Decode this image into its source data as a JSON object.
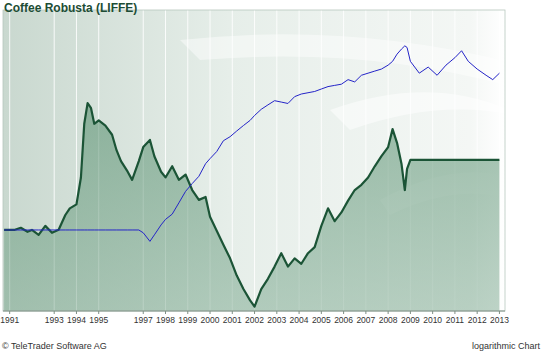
{
  "chart_data": {
    "type": "line",
    "title": "Coffee Robusta (LIFFE)",
    "annotations": [
      "© TeleTrader Software AG",
      "logarithmic Chart"
    ],
    "log": "y",
    "grid": true,
    "tick_labels": "x",
    "xlim": [
      1990.7,
      2013.25
    ],
    "xticks": [
      1991,
      1993,
      1994,
      1995,
      1997,
      1998,
      1999,
      2000,
      2001,
      2002,
      2003,
      2004,
      2005,
      2006,
      2007,
      2008,
      2009,
      2010,
      2011,
      2012,
      2013
    ],
    "ylim": [
      450,
      9000
    ],
    "x": [
      1990.75,
      1991.2,
      1991.5,
      1991.8,
      1992.0,
      1992.3,
      1992.6,
      1992.9,
      1993.2,
      1993.5,
      1993.7,
      1994.0,
      1994.2,
      1994.35,
      1994.5,
      1994.65,
      1994.8,
      1995.0,
      1995.3,
      1995.6,
      1995.8,
      1996.0,
      1996.3,
      1996.5,
      1996.8,
      1997.0,
      1997.3,
      1997.5,
      1997.8,
      1998.0,
      1998.3,
      1998.6,
      1998.9,
      1999.2,
      1999.5,
      1999.8,
      2000.0,
      2000.3,
      2000.6,
      2000.9,
      2001.2,
      2001.5,
      2001.8,
      2002.0,
      2002.3,
      2002.6,
      2002.9,
      2003.2,
      2003.5,
      2003.8,
      2004.1,
      2004.4,
      2004.7,
      2005.0,
      2005.3,
      2005.6,
      2005.9,
      2006.2,
      2006.5,
      2006.8,
      2007.1,
      2007.4,
      2007.7,
      2008.0,
      2008.2,
      2008.4,
      2008.6,
      2008.75,
      2008.85,
      2009.0,
      2009.4,
      2009.8,
      2010.2,
      2010.6,
      2011.0,
      2011.3,
      2011.6,
      2012.0,
      2012.4,
      2012.7,
      2013.0
    ],
    "series": [
      {
        "type": "area",
        "color": "#1b5436",
        "values": [
          1008,
          1008,
          1030,
          990,
          1008,
          960,
          1050,
          980,
          1010,
          1170,
          1250,
          1300,
          1700,
          2900,
          3560,
          3400,
          2900,
          3000,
          2850,
          2600,
          2230,
          2000,
          1800,
          1660,
          2000,
          2300,
          2470,
          2100,
          1800,
          1700,
          1900,
          1660,
          1750,
          1500,
          1360,
          1400,
          1150,
          1000,
          870,
          760,
          640,
          560,
          500,
          470,
          560,
          620,
          700,
          800,
          700,
          760,
          720,
          800,
          850,
          1050,
          1250,
          1100,
          1200,
          1350,
          1500,
          1580,
          1700,
          1900,
          2100,
          2300,
          2750,
          2400,
          1950,
          1500,
          1850,
          2025,
          2025,
          2025,
          2025,
          2025,
          2025,
          2025,
          2025,
          2025,
          2025,
          2025,
          2025
        ]
      },
      {
        "type": "line",
        "color": "#2424c8",
        "values": [
          1008,
          1008,
          1008,
          1008,
          1008,
          1008,
          1008,
          1008,
          1008,
          1008,
          1008,
          1008,
          1008,
          1008,
          1008,
          1008,
          1008,
          1008,
          1008,
          1008,
          1008,
          1008,
          1008,
          1008,
          1008,
          980,
          900,
          960,
          1060,
          1120,
          1180,
          1320,
          1480,
          1600,
          1720,
          1950,
          2050,
          2200,
          2450,
          2550,
          2700,
          2850,
          3000,
          3150,
          3350,
          3500,
          3650,
          3600,
          3550,
          3800,
          3900,
          3950,
          4000,
          4100,
          4200,
          4250,
          4300,
          4500,
          4400,
          4700,
          4800,
          4900,
          5000,
          5200,
          5400,
          5800,
          6100,
          6300,
          6200,
          5400,
          4800,
          5100,
          4700,
          5200,
          5600,
          6000,
          5400,
          5000,
          4700,
          4500,
          4800
        ]
      }
    ]
  }
}
